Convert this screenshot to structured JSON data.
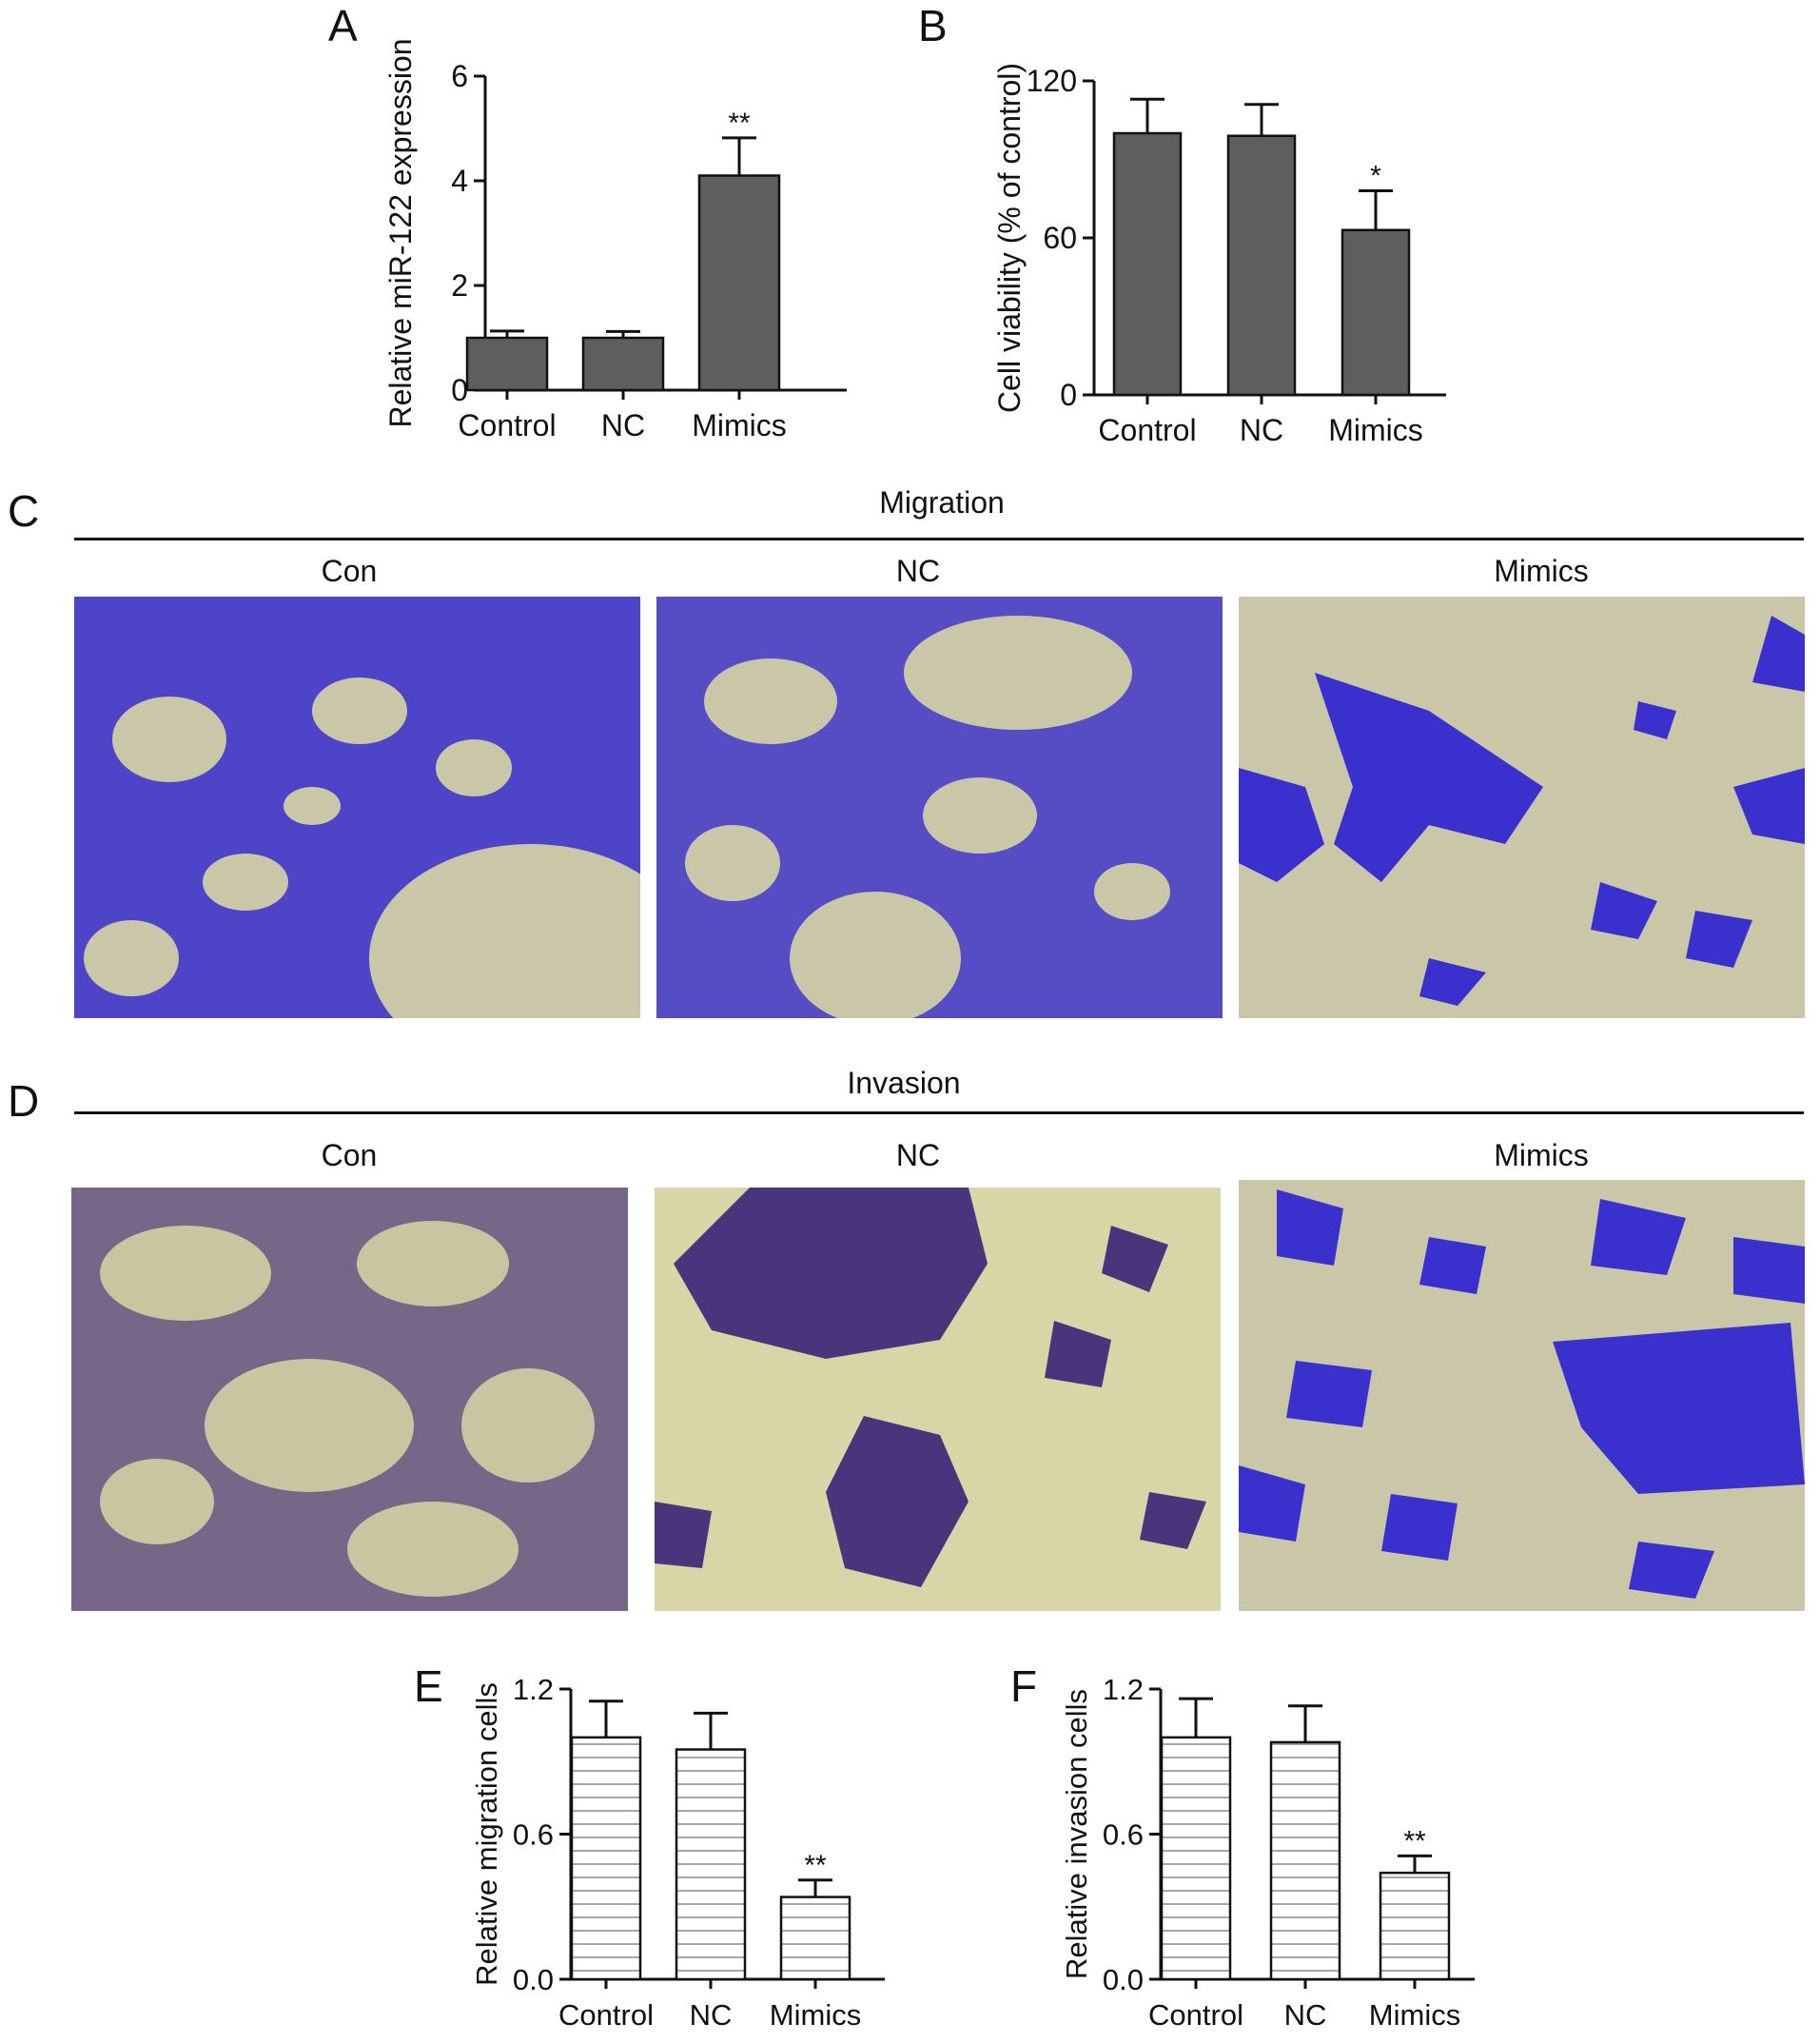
{
  "panels": {
    "a": "A",
    "b": "B",
    "c": "C",
    "d": "D",
    "e": "E",
    "f": "F"
  },
  "sections": {
    "migration": {
      "title": "Migration",
      "labels": [
        "Con",
        "NC",
        "Mimics"
      ]
    },
    "invasion": {
      "title": "Invasion",
      "labels": [
        "Con",
        "NC",
        "Mimics"
      ]
    }
  },
  "colors": {
    "bar_fill_dark": "#5e5e5e",
    "bar_fill_light": "#ffffff",
    "stain_blue_migration": "#2a1fd0",
    "stain_purple_invasion": "#3a2378",
    "background_cells": "#c9c7a8",
    "background_invasion": "#d8d6a6"
  },
  "chart_data": [
    {
      "id": "A",
      "type": "bar",
      "categories": [
        "Control",
        "NC",
        "Mimics"
      ],
      "values": [
        1.0,
        1.0,
        4.1
      ],
      "errors": [
        0.13,
        0.12,
        0.72
      ],
      "significance": [
        "",
        "",
        "**"
      ],
      "ylabel": "Relative miR-122 expression",
      "ylim": [
        0,
        6
      ],
      "yticks": [
        "0",
        "2",
        "4",
        "6"
      ],
      "style": "solid-dark"
    },
    {
      "id": "B",
      "type": "bar",
      "categories": [
        "Control",
        "NC",
        "Mimics"
      ],
      "values": [
        100,
        99,
        63
      ],
      "errors": [
        13,
        12,
        15
      ],
      "significance": [
        "",
        "",
        "*"
      ],
      "ylabel": "Cell viability (% of control)",
      "ylim": [
        0,
        120
      ],
      "yticks": [
        "0",
        "60",
        "120"
      ],
      "style": "solid-dark"
    },
    {
      "id": "E",
      "type": "bar",
      "categories": [
        "Control",
        "NC",
        "Mimics"
      ],
      "values": [
        1.0,
        0.95,
        0.34
      ],
      "errors": [
        0.15,
        0.15,
        0.07
      ],
      "significance": [
        "",
        "",
        "**"
      ],
      "ylabel": "Relative migration cells",
      "ylim": [
        0,
        1.2
      ],
      "yticks": [
        "0.0",
        "0.6",
        "1.2"
      ],
      "style": "hatched"
    },
    {
      "id": "F",
      "type": "bar",
      "categories": [
        "Control",
        "NC",
        "Mimics"
      ],
      "values": [
        1.0,
        0.98,
        0.44
      ],
      "errors": [
        0.16,
        0.15,
        0.07
      ],
      "significance": [
        "",
        "",
        "**"
      ],
      "ylabel": "Relative invasion cells",
      "ylim": [
        0,
        1.2
      ],
      "yticks": [
        "0.0",
        "0.6",
        "1.2"
      ],
      "style": "hatched"
    }
  ]
}
